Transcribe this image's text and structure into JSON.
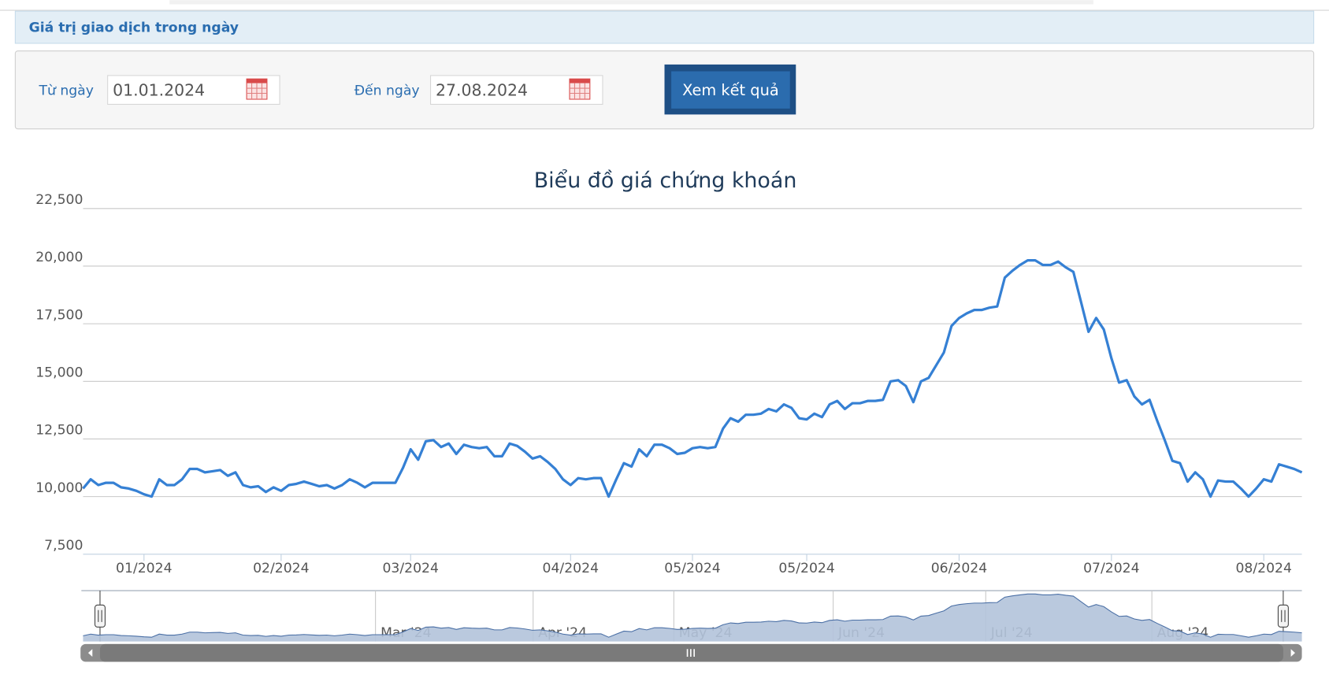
{
  "header": {
    "title": "Giá trị giao dịch trong ngày"
  },
  "form": {
    "from_label": "Từ ngày",
    "from_date": "01.01.2024",
    "to_label": "Đến ngày",
    "to_date": "27.08.2024",
    "submit": "Xem kết quả"
  },
  "chart_data": {
    "type": "line",
    "title": "Biểu đồ giá chứng khoán",
    "color": "#3580d4",
    "categories": [
      null,
      null,
      null,
      null,
      null,
      null,
      null,
      null,
      "01/2024",
      null,
      null,
      null,
      null,
      null,
      null,
      null,
      null,
      null,
      null,
      null,
      null,
      null,
      null,
      null,
      null,
      null,
      "02/2024",
      null,
      null,
      null,
      null,
      null,
      null,
      null,
      null,
      null,
      null,
      null,
      null,
      null,
      null,
      null,
      null,
      "03/2024",
      null,
      null,
      null,
      null,
      null,
      null,
      null,
      null,
      null,
      null,
      null,
      null,
      null,
      null,
      null,
      null,
      null,
      null,
      null,
      null,
      "04/2024",
      null,
      null,
      null,
      null,
      null,
      null,
      null,
      null,
      null,
      null,
      null,
      null,
      null,
      null,
      null,
      "05/2024",
      null,
      null,
      null,
      null,
      null,
      null,
      null,
      null,
      null,
      null,
      null,
      null,
      null,
      null,
      "05/2024",
      null,
      null,
      null,
      null,
      null,
      null,
      null,
      null,
      null,
      null,
      null,
      null,
      null,
      null,
      null,
      null,
      null,
      null,
      null,
      "06/2024",
      null,
      null,
      null,
      null,
      null,
      null,
      null,
      null,
      null,
      null,
      null,
      null,
      null,
      null,
      null,
      null,
      null,
      null,
      null,
      "07/2024",
      null,
      null,
      null,
      null,
      null,
      null,
      null,
      null,
      null,
      null,
      null,
      null,
      null,
      null,
      null,
      null,
      null,
      null,
      null,
      "08/2024",
      null,
      null,
      null,
      null,
      null
    ],
    "values": [
      10350,
      10750,
      10500,
      10600,
      10600,
      10400,
      10350,
      10250,
      10100,
      10000,
      10750,
      10500,
      10500,
      10750,
      11200,
      11200,
      11050,
      11100,
      11150,
      10900,
      11050,
      10500,
      10400,
      10450,
      10200,
      10400,
      10250,
      10500,
      10550,
      10650,
      10550,
      10450,
      10500,
      10350,
      10500,
      10750,
      10600,
      10400,
      10600,
      10600,
      10600,
      10600,
      11250,
      12050,
      11600,
      12400,
      12450,
      12150,
      12300,
      11850,
      12250,
      12150,
      12100,
      12150,
      11750,
      11750,
      12300,
      12200,
      11950,
      11650,
      11750,
      11500,
      11200,
      10750,
      10500,
      10800,
      10750,
      10800,
      10800,
      10000,
      10750,
      11450,
      11300,
      12050,
      11750,
      12250,
      12250,
      12100,
      11850,
      11900,
      12100,
      12150,
      12100,
      12150,
      12950,
      13400,
      13250,
      13550,
      13550,
      13600,
      13800,
      13700,
      14000,
      13850,
      13400,
      13350,
      13600,
      13450,
      14000,
      14150,
      13800,
      14050,
      14050,
      14150,
      14150,
      14200,
      15000,
      15050,
      14800,
      14100,
      15000,
      15150,
      15700,
      16250,
      17400,
      17750,
      17950,
      18100,
      18100,
      18200,
      18250,
      19500,
      19800,
      20050,
      20250,
      20250,
      20050,
      20050,
      20200,
      19950,
      19750,
      18450,
      17150,
      17750,
      17250,
      16000,
      14950,
      15050,
      14350,
      14000,
      14200,
      13300,
      12450,
      11550,
      11450,
      10650,
      11050,
      10750,
      10000,
      10700,
      10650,
      10650,
      10350,
      10000,
      10350,
      10750,
      10650,
      11400,
      11300,
      11200,
      11050
    ],
    "ylim": [
      7500,
      22500
    ],
    "yticks": [
      {
        "value": 7500,
        "label": "7,500"
      },
      {
        "value": 10000,
        "label": "10,000"
      },
      {
        "value": 12500,
        "label": "12,500"
      },
      {
        "value": 15000,
        "label": "15,000"
      },
      {
        "value": 17500,
        "label": "17,500"
      },
      {
        "value": 20000,
        "label": "20,000"
      },
      {
        "value": 22500,
        "label": "22,500"
      }
    ],
    "grid": true
  },
  "navigator": {
    "labels": [
      "Mar '24",
      "Apr '24",
      "May '24",
      "Jun '24",
      "Jul '24",
      "Aug '24"
    ],
    "fill": "#b3c3da",
    "line": "#4a6fa5"
  }
}
